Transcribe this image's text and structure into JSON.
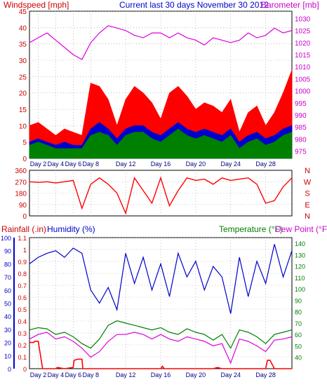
{
  "chart_data": [
    {
      "type": "line",
      "name": "wind-barometer-panel",
      "title": "Current last 30 days November 30 2012",
      "left_axis_label": "Windspeed [mph]",
      "right_axis_label": "Barometer [mb]",
      "left_ticks": [
        "45",
        "40",
        "35",
        "30",
        "25",
        "20",
        "15",
        "10",
        "5",
        "0"
      ],
      "right_ticks": [
        "1030",
        "1025",
        "1020",
        "1015",
        "1010",
        "1005",
        "1000",
        "995",
        "990",
        "985",
        "980",
        "975"
      ],
      "x_tick_labels": [
        "Day 2",
        "Day 4",
        "Day 6",
        "Day 8",
        "Day 12",
        "Day 16",
        "Day 20",
        "Day 24",
        "Day 28"
      ],
      "x_tick_days": [
        2,
        4,
        6,
        8,
        12,
        16,
        20,
        24,
        28
      ],
      "xlim": [
        1,
        31
      ],
      "ylim_left": [
        0,
        45
      ],
      "ylim_right": [
        972,
        1033
      ],
      "series": [
        {
          "key": "windspeed_max",
          "color": "#ff0000",
          "days": [
            1,
            2,
            3,
            4,
            5,
            6,
            7,
            8,
            9,
            10,
            11,
            12,
            13,
            14,
            15,
            16,
            17,
            18,
            19,
            20,
            21,
            22,
            23,
            24,
            25,
            26,
            27,
            28,
            29,
            30,
            31
          ],
          "values": [
            10,
            11,
            9,
            7,
            9,
            8,
            7,
            23,
            22,
            18,
            10,
            18,
            22,
            20,
            17,
            12,
            20,
            22,
            19,
            15,
            17,
            16,
            14,
            18,
            8,
            14,
            16,
            10,
            14,
            20,
            27
          ]
        },
        {
          "key": "windspeed_avg",
          "color": "#0000cc",
          "days": [
            1,
            2,
            3,
            4,
            5,
            6,
            7,
            8,
            9,
            10,
            11,
            12,
            13,
            14,
            15,
            16,
            17,
            18,
            19,
            20,
            21,
            22,
            23,
            24,
            25,
            26,
            27,
            28,
            29,
            30,
            31
          ],
          "values": [
            5,
            6,
            5,
            4,
            5,
            4,
            4,
            9,
            11,
            9,
            6,
            9,
            10,
            10,
            8,
            7,
            9,
            11,
            9,
            8,
            9,
            8,
            7,
            9,
            5,
            7,
            8,
            6,
            7,
            9,
            10
          ]
        },
        {
          "key": "windspeed_gust_low",
          "color": "#008000",
          "days": [
            1,
            2,
            3,
            4,
            5,
            6,
            7,
            8,
            9,
            10,
            11,
            12,
            13,
            14,
            15,
            16,
            17,
            18,
            19,
            20,
            21,
            22,
            23,
            24,
            25,
            26,
            27,
            28,
            29,
            30,
            31
          ],
          "values": [
            4,
            5,
            4,
            3,
            3,
            3,
            3,
            7,
            8,
            7,
            4,
            7,
            8,
            8,
            6,
            5,
            7,
            9,
            7,
            6,
            7,
            6,
            5,
            7,
            3,
            5,
            6,
            4,
            5,
            7,
            8
          ]
        },
        {
          "key": "barometer",
          "color": "#dd00dd",
          "days": [
            1,
            2,
            3,
            4,
            5,
            6,
            7,
            8,
            9,
            10,
            11,
            12,
            13,
            14,
            15,
            16,
            17,
            18,
            19,
            20,
            21,
            22,
            23,
            24,
            25,
            26,
            27,
            28,
            29,
            30,
            31
          ],
          "values": [
            1020,
            1022,
            1024,
            1021,
            1018,
            1015,
            1013,
            1020,
            1024,
            1027,
            1026,
            1025,
            1023,
            1022,
            1024,
            1024,
            1022,
            1024,
            1022,
            1021,
            1019,
            1022,
            1021,
            1020,
            1021,
            1024,
            1022,
            1023,
            1026,
            1024,
            1025
          ]
        }
      ]
    },
    {
      "type": "line",
      "name": "wind-direction-panel",
      "left_ticks": [
        "360",
        "270",
        "180",
        "90",
        "0"
      ],
      "right_labels": [
        "N",
        "W",
        "S",
        "E",
        "N"
      ],
      "xlim": [
        1,
        31
      ],
      "ylim": [
        0,
        360
      ],
      "series": [
        {
          "key": "wind_direction",
          "color": "#ff0000",
          "days": [
            1,
            2,
            3,
            4,
            5,
            6,
            7,
            8,
            9,
            10,
            11,
            12,
            13,
            14,
            15,
            16,
            17,
            18,
            19,
            20,
            21,
            22,
            23,
            24,
            25,
            26,
            27,
            28,
            29,
            30,
            31
          ],
          "values": [
            270,
            265,
            270,
            260,
            270,
            280,
            60,
            250,
            300,
            250,
            180,
            20,
            300,
            200,
            100,
            300,
            80,
            200,
            300,
            280,
            290,
            250,
            300,
            280,
            290,
            300,
            250,
            100,
            120,
            230,
            300
          ]
        }
      ]
    },
    {
      "type": "line",
      "name": "rain-humidity-temp-panel",
      "left_axis_label_1": "Rainfall (.in)",
      "left_axis_label_2": "Humidity (%)",
      "right_axis_label_1": "Temperature (°F)",
      "right_axis_label_2": "Dew Point (°F)",
      "humidity_ticks": [
        "100",
        "90",
        "80",
        "70",
        "60",
        "50",
        "40",
        "30",
        "20",
        "10",
        "0"
      ],
      "rain_ticks": [
        "1.1",
        "1",
        "0.9",
        "0.8",
        "0.7",
        "0.6",
        "0.5",
        "0.4",
        "0.3",
        "0.2",
        "0.1",
        "0"
      ],
      "temp_ticks": [
        "140",
        "130",
        "120",
        "110",
        "100",
        "90",
        "80",
        "70",
        "60",
        "50",
        "40"
      ],
      "x_tick_labels": [
        "Day 2",
        "Day 4",
        "Day 6",
        "Day 8",
        "Day 12",
        "Day 16",
        "Day 20",
        "Day 24",
        "Day 28"
      ],
      "x_tick_days": [
        2,
        4,
        6,
        8,
        12,
        16,
        20,
        24,
        28
      ],
      "xlim": [
        1,
        31
      ],
      "ylim_humidity": [
        0,
        100
      ],
      "ylim_rain": [
        0,
        1.1
      ],
      "ylim_temp": [
        30,
        145
      ],
      "series": [
        {
          "key": "humidity",
          "color": "#0000cc",
          "days": [
            1,
            2,
            3,
            4,
            5,
            6,
            7,
            8,
            9,
            10,
            11,
            12,
            13,
            14,
            15,
            16,
            17,
            18,
            19,
            20,
            21,
            22,
            23,
            24,
            25,
            26,
            27,
            28,
            29,
            30,
            31
          ],
          "values": [
            80,
            85,
            88,
            90,
            85,
            92,
            88,
            60,
            50,
            62,
            45,
            88,
            65,
            85,
            60,
            80,
            55,
            88,
            70,
            82,
            60,
            78,
            70,
            42,
            85,
            55,
            82,
            65,
            95,
            70,
            90
          ]
        },
        {
          "key": "temperature",
          "color": "#008000",
          "days": [
            1,
            2,
            3,
            4,
            5,
            6,
            7,
            8,
            9,
            10,
            11,
            12,
            13,
            14,
            15,
            16,
            17,
            18,
            19,
            20,
            21,
            22,
            23,
            24,
            25,
            26,
            27,
            28,
            29,
            30,
            31
          ],
          "values": [
            64,
            66,
            65,
            60,
            62,
            58,
            52,
            48,
            56,
            68,
            72,
            70,
            68,
            66,
            64,
            66,
            62,
            60,
            65,
            62,
            60,
            55,
            60,
            48,
            64,
            62,
            58,
            52,
            60,
            62,
            64
          ]
        },
        {
          "key": "dew_point",
          "color": "#dd00dd",
          "days": [
            1,
            2,
            3,
            4,
            5,
            6,
            7,
            8,
            9,
            10,
            11,
            12,
            13,
            14,
            15,
            16,
            17,
            18,
            19,
            20,
            21,
            22,
            23,
            24,
            25,
            26,
            27,
            28,
            29,
            30,
            31
          ],
          "values": [
            56,
            60,
            62,
            56,
            58,
            54,
            48,
            40,
            45,
            54,
            60,
            60,
            62,
            60,
            56,
            60,
            56,
            54,
            58,
            56,
            54,
            50,
            52,
            35,
            56,
            54,
            50,
            45,
            55,
            56,
            58
          ]
        },
        {
          "key": "rainfall",
          "color": "#ff0000",
          "days": [
            1,
            1.5,
            1.6,
            2,
            2.5,
            3,
            4,
            4.2,
            5,
            6,
            6.1,
            6.5,
            7,
            7.1,
            8,
            16,
            16.2,
            16.4,
            22,
            22.5,
            23,
            28,
            28.2,
            28.5,
            29,
            31
          ],
          "values": [
            0.22,
            0.22,
            0.23,
            0.23,
            0,
            0,
            0,
            0.01,
            0,
            0.01,
            0.07,
            0.08,
            0.08,
            0,
            0,
            0,
            0.02,
            0,
            0,
            0.01,
            0,
            0,
            0.07,
            0.07,
            0,
            0
          ]
        }
      ]
    }
  ]
}
